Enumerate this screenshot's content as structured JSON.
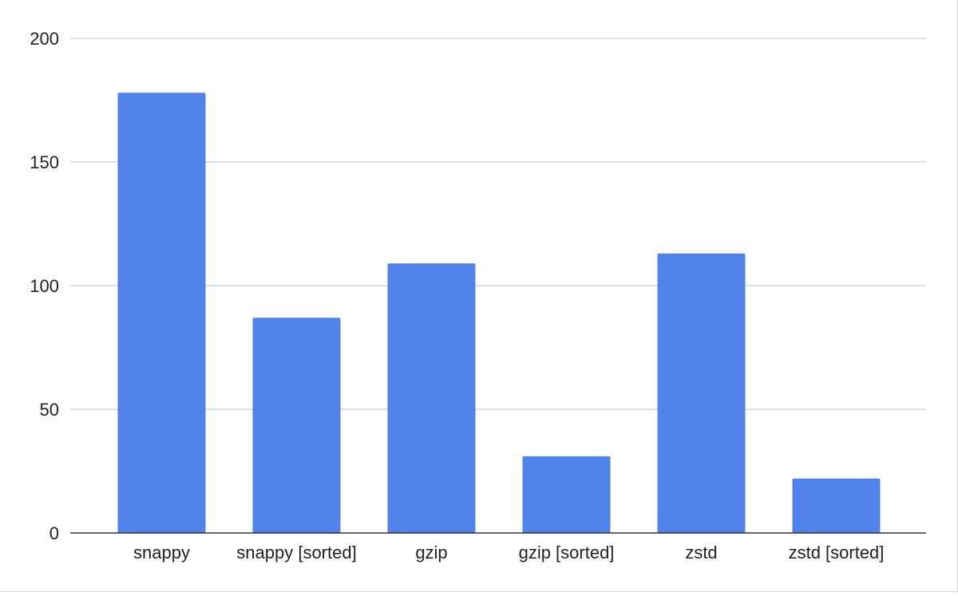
{
  "chart_data": {
    "type": "bar",
    "title": "",
    "xlabel": "",
    "ylabel": "",
    "categories": [
      "snappy",
      "snappy [sorted]",
      "gzip",
      "gzip [sorted]",
      "zstd",
      "zstd [sorted]"
    ],
    "values": [
      178,
      87,
      109,
      31,
      113,
      22
    ],
    "ylim": [
      0,
      200
    ],
    "yticks": [
      0,
      50,
      100,
      150,
      200
    ],
    "ytick_labels": [
      "0",
      "50",
      "100",
      "150",
      "200"
    ],
    "grid": true,
    "legend": "none",
    "colors": {
      "bar": "#5183ea",
      "grid": "#cccccc",
      "axis": "#333333"
    }
  }
}
